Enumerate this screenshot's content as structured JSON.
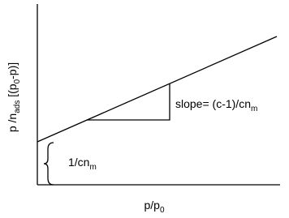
{
  "y_label": {
    "parts": [
      "p /n",
      "ads",
      " [(p",
      "0",
      "-p)]"
    ]
  },
  "x_label": {
    "parts": [
      "p/p",
      "0"
    ]
  },
  "slope_label": {
    "parts": [
      "slope= (c-1)/cn",
      "m"
    ]
  },
  "intercept_label": {
    "parts": [
      "1/cn",
      "m"
    ]
  }
}
